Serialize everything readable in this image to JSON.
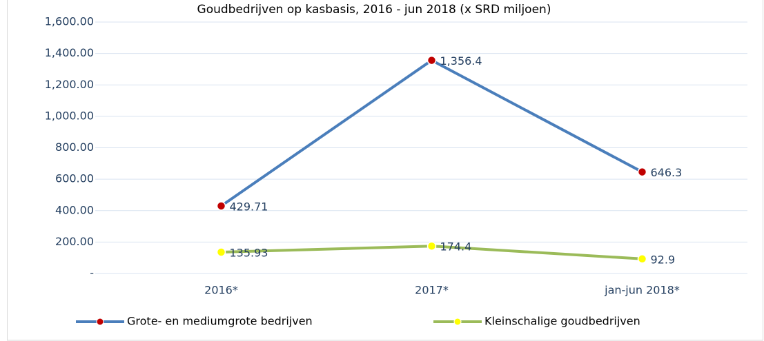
{
  "chart_data": {
    "type": "line",
    "title": "Goudbedrijven op kasbasis, 2016 - jun 2018 (x SRD miljoen)",
    "categories": [
      "2016*",
      "2017*",
      "jan-jun 2018*"
    ],
    "series": [
      {
        "name": "Grote- en mediumgrote bedrijven",
        "color": "#4a7ebb",
        "marker_color": "#c00000",
        "values": [
          429.71,
          1356.4,
          646.3
        ],
        "value_labels": [
          "429.71",
          "1,356.4",
          "646.3"
        ]
      },
      {
        "name": "Kleinschalige goudbedrijven",
        "color": "#9bbb59",
        "marker_color": "#ffff00",
        "values": [
          135.93,
          174.4,
          92.9
        ]
      }
    ],
    "ylim": [
      0,
      1600
    ],
    "yticks": [
      {
        "value": 0,
        "label": "-"
      },
      {
        "value": 200,
        "label": "200.00"
      },
      {
        "value": 400,
        "label": "400.00"
      },
      {
        "value": 600,
        "label": "600.00"
      },
      {
        "value": 800,
        "label": "800.00"
      },
      {
        "value": 1000,
        "label": "1,000.00"
      },
      {
        "value": 1200,
        "label": "1,200.00"
      },
      {
        "value": 1400,
        "label": "1,400.00"
      },
      {
        "value": 1600,
        "label": "1,600.00"
      }
    ],
    "grid": true,
    "legend": "bottom"
  }
}
